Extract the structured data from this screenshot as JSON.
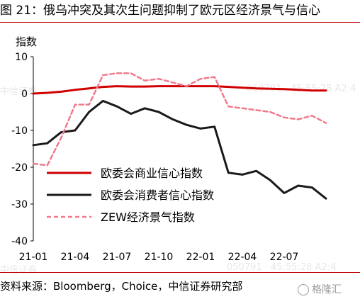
{
  "figure_title": "图 21：俄乌冲突及其次生问题抑制了欧元区经济景气与信心",
  "source_note": "资料来源：Bloomberg，Choice，中信证券研究部",
  "watermarks": {
    "left": "中信证券",
    "right": "050791 · 45:55:28 A2:4"
  },
  "logo_text": "格隆汇",
  "colors": {
    "accent_red": "#c00000",
    "series_business": "#d00000",
    "series_consumer": "#1a1a1a",
    "series_zew": "#f07a8c"
  },
  "chart_data": {
    "type": "line",
    "ylabel": "指数",
    "xlabel": "",
    "ylim": [
      -40,
      10
    ],
    "yticks": [
      10,
      0,
      -10,
      -20,
      -30,
      -40
    ],
    "xtick_labels": [
      "21-01",
      "21-04",
      "21-07",
      "21-10",
      "22-01",
      "22-04",
      "22-07"
    ],
    "x_start": "2021-01",
    "x_end": "2022-10",
    "legend_position": "lower-left",
    "grid": false,
    "series": [
      {
        "name": "欧委会商业信心指数",
        "style": "solid",
        "values": [
          [
            "2021-01",
            0
          ],
          [
            "2021-02",
            0.2
          ],
          [
            "2021-03",
            0.5
          ],
          [
            "2021-04",
            1.0
          ],
          [
            "2021-05",
            1.4
          ],
          [
            "2021-06",
            1.8
          ],
          [
            "2021-07",
            2.0
          ],
          [
            "2021-08",
            1.9
          ],
          [
            "2021-09",
            1.9
          ],
          [
            "2021-10",
            2.0
          ],
          [
            "2021-11",
            2.0
          ],
          [
            "2021-12",
            2.0
          ],
          [
            "2022-01",
            2.0
          ],
          [
            "2022-02",
            2.0
          ],
          [
            "2022-03",
            1.8
          ],
          [
            "2022-04",
            1.6
          ],
          [
            "2022-05",
            1.4
          ],
          [
            "2022-06",
            1.3
          ],
          [
            "2022-07",
            1.2
          ],
          [
            "2022-08",
            1.0
          ],
          [
            "2022-09",
            0.8
          ],
          [
            "2022-10",
            0.8
          ]
        ]
      },
      {
        "name": "欧委会消费者信心指数",
        "style": "solid",
        "values": [
          [
            "2021-01",
            -14
          ],
          [
            "2021-02",
            -13.5
          ],
          [
            "2021-03",
            -10.5
          ],
          [
            "2021-04",
            -10
          ],
          [
            "2021-05",
            -5
          ],
          [
            "2021-06",
            -2
          ],
          [
            "2021-07",
            -3.5
          ],
          [
            "2021-08",
            -5.5
          ],
          [
            "2021-09",
            -4
          ],
          [
            "2021-10",
            -5
          ],
          [
            "2021-11",
            -7
          ],
          [
            "2021-12",
            -8.5
          ],
          [
            "2022-01",
            -9.5
          ],
          [
            "2022-02",
            -9
          ],
          [
            "2022-03",
            -21.5
          ],
          [
            "2022-04",
            -22
          ],
          [
            "2022-05",
            -21
          ],
          [
            "2022-06",
            -23.5
          ],
          [
            "2022-07",
            -27
          ],
          [
            "2022-08",
            -25
          ],
          [
            "2022-09",
            -25.5
          ],
          [
            "2022-10",
            -28.5
          ]
        ]
      },
      {
        "name": "ZEW经济景气指数",
        "style": "dashed",
        "values": [
          [
            "2021-01",
            -19
          ],
          [
            "2021-02",
            -19.5
          ],
          [
            "2021-03",
            -12
          ],
          [
            "2021-04",
            -3
          ],
          [
            "2021-05",
            -3
          ],
          [
            "2021-06",
            5
          ],
          [
            "2021-07",
            5.5
          ],
          [
            "2021-08",
            5.5
          ],
          [
            "2021-09",
            3.5
          ],
          [
            "2021-10",
            4
          ],
          [
            "2021-11",
            3
          ],
          [
            "2021-12",
            2
          ],
          [
            "2022-01",
            4
          ],
          [
            "2022-02",
            4.5
          ],
          [
            "2022-03",
            -3.5
          ],
          [
            "2022-04",
            -4
          ],
          [
            "2022-05",
            -4.5
          ],
          [
            "2022-06",
            -5
          ],
          [
            "2022-07",
            -6.5
          ],
          [
            "2022-08",
            -7
          ],
          [
            "2022-09",
            -6
          ],
          [
            "2022-10",
            -8
          ]
        ]
      }
    ]
  }
}
